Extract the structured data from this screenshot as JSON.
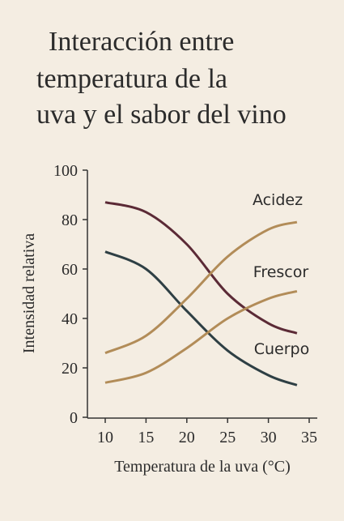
{
  "chart_data": {
    "type": "line",
    "title_lines": [
      "Interacción entre",
      "temperatura de la",
      "uva y el sabor del vino"
    ],
    "xlabel": "Temperatura de la uva (°C)",
    "ylabel": "Intensidad relativa",
    "x": [
      10,
      15,
      20,
      25,
      30,
      33.5
    ],
    "series": [
      {
        "color": "#2e3f44",
        "values": [
          67,
          60,
          43,
          27,
          17,
          13
        ]
      },
      {
        "name": "Cuerpo",
        "color": "#5b2a36",
        "values": [
          87,
          83,
          70,
          50,
          38,
          34
        ]
      },
      {
        "name": "Frescor",
        "color": "#b28c58",
        "values": [
          14,
          18,
          28,
          40,
          48,
          51
        ]
      },
      {
        "name": "Acidez",
        "color": "#b28c58",
        "values": [
          26,
          33,
          48,
          65,
          76,
          79
        ]
      }
    ],
    "xlim": [
      10,
      35
    ],
    "xticks": [
      10,
      15,
      20,
      25,
      30,
      35
    ],
    "ylim": [
      0,
      100
    ],
    "yticks": [
      0,
      20,
      40,
      60,
      80,
      100
    ]
  }
}
